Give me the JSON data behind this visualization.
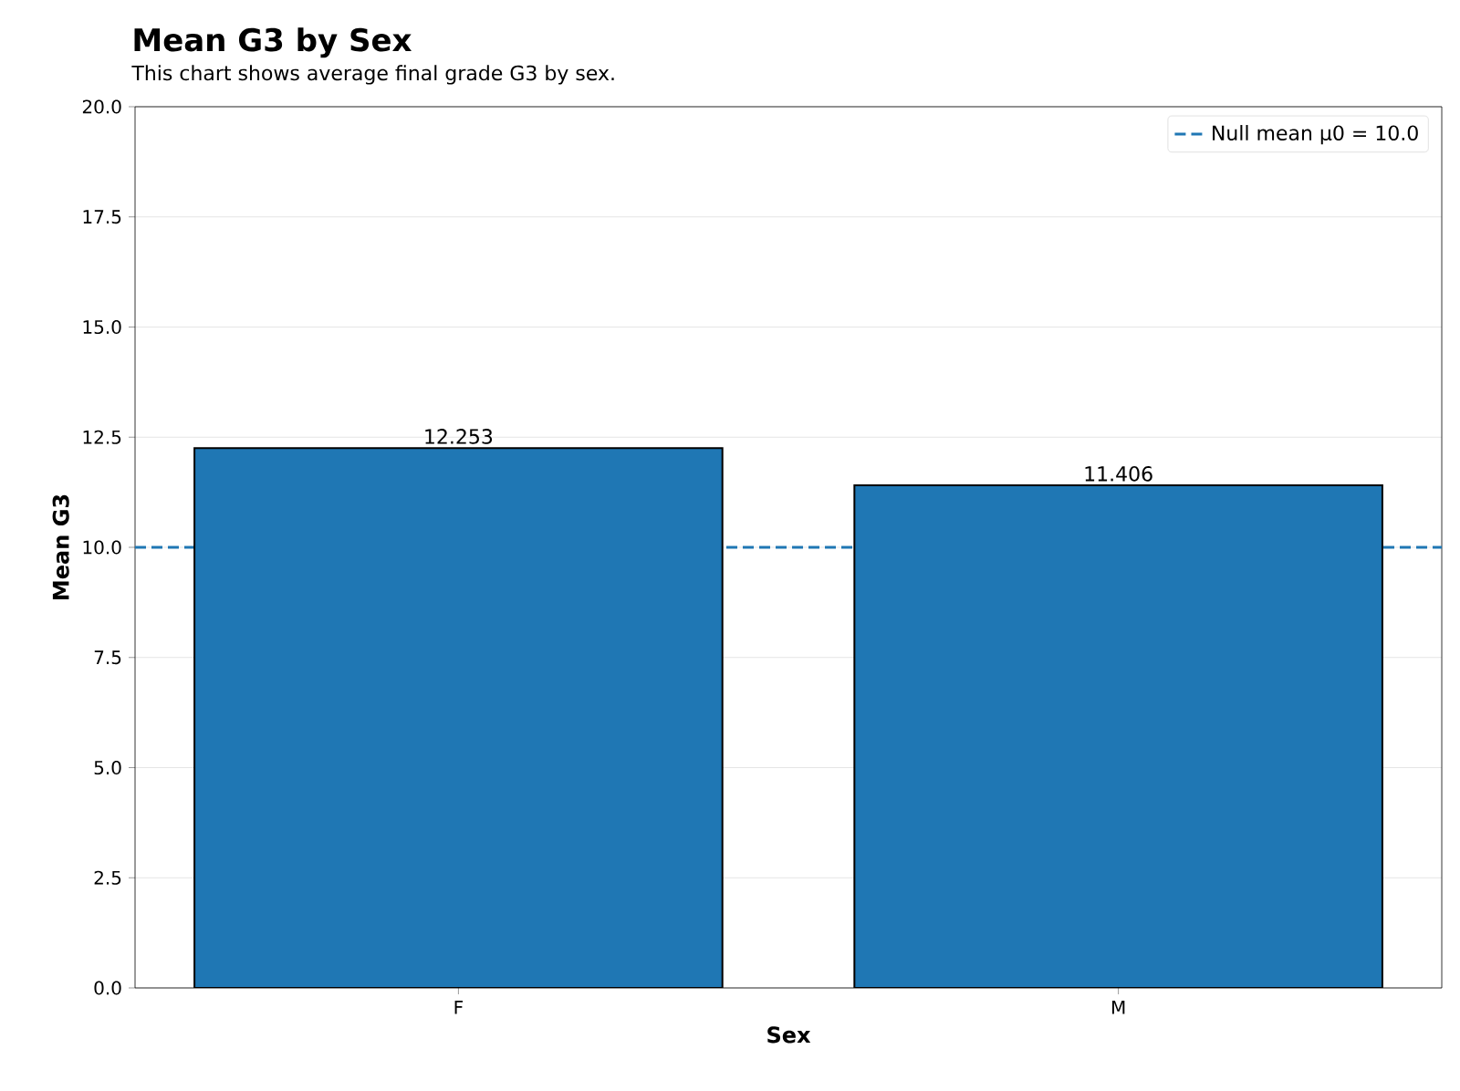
{
  "chart_data": {
    "type": "bar",
    "title": "Mean G3 by Sex",
    "subtitle": "This chart shows average final grade G3 by sex.",
    "xlabel": "Sex",
    "ylabel": "Mean G3",
    "categories": [
      "F",
      "M"
    ],
    "values": [
      12.253,
      11.406
    ],
    "color": "#1f77b4",
    "data_labels": true,
    "ylim": [
      0,
      20
    ],
    "yticks": [
      {
        "value": 0,
        "label": "0.0"
      },
      {
        "value": 2.5,
        "label": "2.5"
      },
      {
        "value": 5,
        "label": "5.0"
      },
      {
        "value": 7.5,
        "label": "7.5"
      },
      {
        "value": 10,
        "label": "10.0"
      },
      {
        "value": 12.5,
        "label": "12.5"
      },
      {
        "value": 15,
        "label": "15.0"
      },
      {
        "value": 17.5,
        "label": "17.5"
      },
      {
        "value": 20,
        "label": "20.0"
      }
    ],
    "grid": "y",
    "legend": "top right",
    "ref_lines": [
      {
        "axis": "y",
        "value": 10.0,
        "label": "Null mean μ0 = 10.0",
        "color": "#1f77b4",
        "line_style": "dashed"
      }
    ]
  }
}
